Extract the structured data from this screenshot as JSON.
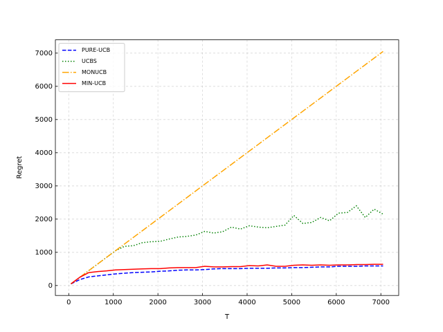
{
  "chart_data": {
    "type": "line",
    "x_label": "T",
    "y_label": "Regret",
    "x": [
      50,
      250,
      450,
      650,
      850,
      1050,
      1250,
      1450,
      1650,
      1850,
      2050,
      2250,
      2450,
      2650,
      2850,
      3050,
      3250,
      3450,
      3650,
      3850,
      4050,
      4250,
      4450,
      4650,
      4850,
      5050,
      5250,
      5450,
      5650,
      5850,
      6050,
      6250,
      6450,
      6650,
      6850,
      7050
    ],
    "series": [
      {
        "name": "PURE-UCB",
        "color": "#0000ff",
        "linestyle": "dashed",
        "values": [
          50,
          180,
          260,
          290,
          320,
          350,
          370,
          390,
          400,
          410,
          430,
          440,
          460,
          470,
          470,
          480,
          500,
          510,
          510,
          510,
          520,
          520,
          520,
          530,
          530,
          540,
          540,
          550,
          560,
          560,
          580,
          580,
          580,
          590,
          590,
          590
        ]
      },
      {
        "name": "UCBS",
        "color": "#008000",
        "linestyle": "dotted",
        "values": [
          50,
          250,
          450,
          650,
          850,
          1050,
          1180,
          1200,
          1290,
          1320,
          1330,
          1400,
          1460,
          1480,
          1520,
          1630,
          1580,
          1620,
          1760,
          1700,
          1800,
          1760,
          1740,
          1780,
          1820,
          2110,
          1870,
          1900,
          2050,
          1950,
          2180,
          2200,
          2400,
          2050,
          2300,
          2150
        ]
      },
      {
        "name": "MONUCB",
        "color": "#ffa500",
        "linestyle": "dashdot",
        "values": [
          50,
          250,
          450,
          650,
          850,
          1050,
          1250,
          1450,
          1650,
          1850,
          2050,
          2250,
          2450,
          2650,
          2850,
          3050,
          3250,
          3450,
          3650,
          3850,
          4050,
          4250,
          4450,
          4650,
          4850,
          5050,
          5250,
          5450,
          5650,
          5850,
          6050,
          6250,
          6450,
          6650,
          6850,
          7050
        ]
      },
      {
        "name": "MIN-UCB",
        "color": "#ff0000",
        "linestyle": "solid",
        "values": [
          50,
          250,
          390,
          420,
          440,
          470,
          480,
          490,
          500,
          510,
          510,
          530,
          540,
          540,
          540,
          580,
          560,
          560,
          570,
          570,
          600,
          590,
          620,
          580,
          580,
          610,
          620,
          610,
          620,
          610,
          620,
          620,
          630,
          630,
          640,
          640
        ]
      }
    ],
    "xlim": [
      -300,
      7400
    ],
    "ylim": [
      -300,
      7400
    ],
    "xticks": [
      0,
      1000,
      2000,
      3000,
      4000,
      5000,
      6000,
      7000
    ],
    "yticks": [
      0,
      1000,
      2000,
      3000,
      4000,
      5000,
      6000,
      7000
    ],
    "grid": true,
    "legend": "upper left"
  }
}
